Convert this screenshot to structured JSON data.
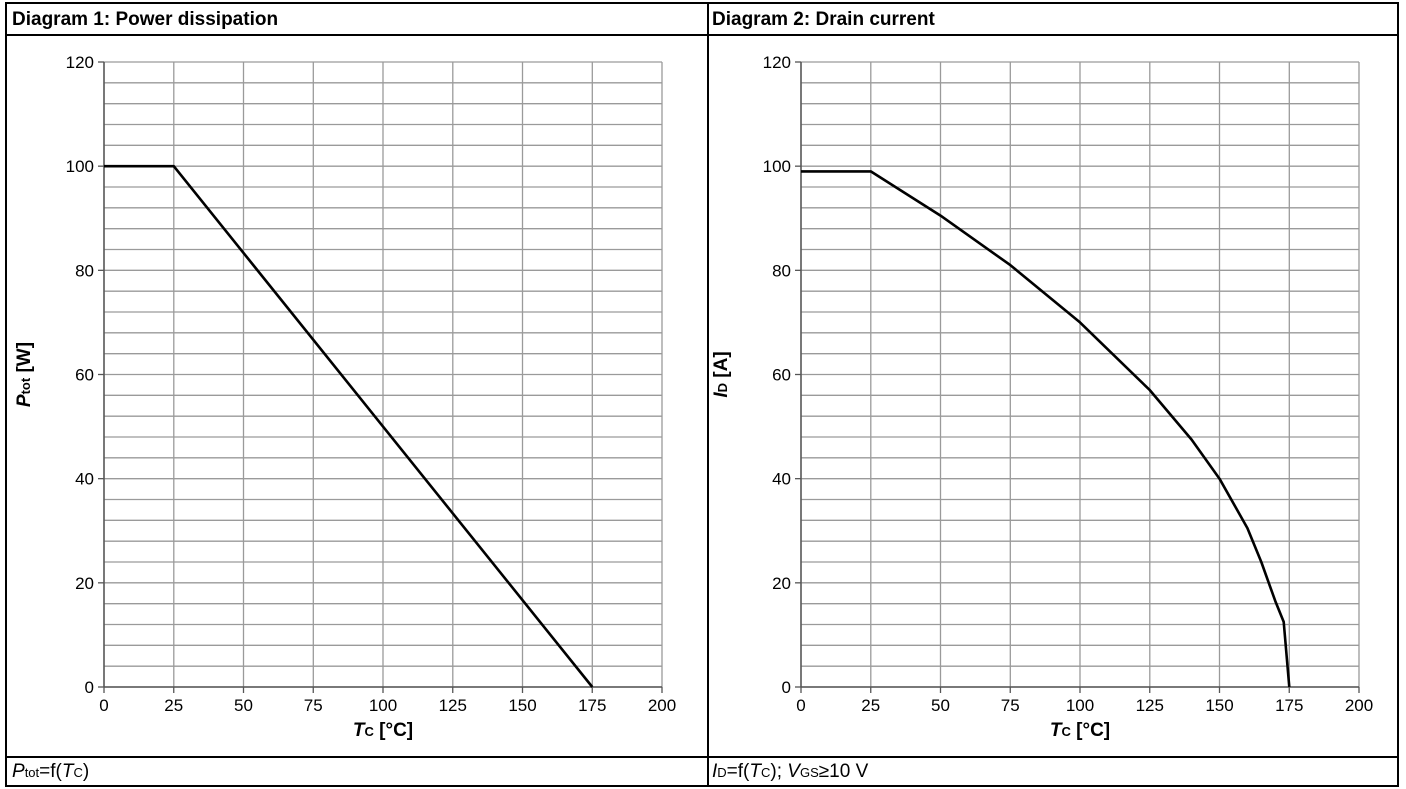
{
  "left_panel": {
    "title": "Diagram 1: Power dissipation",
    "caption": {
      "sym": "P",
      "sym_sub": "tot",
      "mid": "=f(",
      "arg": "T",
      "arg_sub": "C",
      "tail": ")"
    }
  },
  "right_panel": {
    "title": "Diagram 2: Drain current",
    "caption": {
      "sym": "I",
      "sym_sub": "D",
      "mid": "=f(",
      "arg": "T",
      "arg_sub": "C",
      "sep": "); ",
      "cond": "V",
      "cond_sub": "GS",
      "cond_tail": "≥10 V"
    }
  },
  "chart_data": [
    {
      "type": "line",
      "xlabel": {
        "main": "T",
        "sub": "C",
        "unit": " [°C]"
      },
      "ylabel": {
        "main": "P",
        "sub": "tot",
        "unit": " [W]"
      },
      "xlim": [
        0,
        200
      ],
      "ylim": [
        0,
        120
      ],
      "x_ticks": [
        0,
        25,
        50,
        75,
        100,
        125,
        150,
        175,
        200
      ],
      "y_ticks": [
        0,
        20,
        40,
        60,
        80,
        100,
        120
      ],
      "grid": true,
      "minor_y_grid_step": 4,
      "series": [
        {
          "color": "#000000",
          "x": [
            0,
            25,
            175
          ],
          "y": [
            100,
            100,
            0
          ]
        }
      ]
    },
    {
      "type": "line",
      "xlabel": {
        "main": "T",
        "sub": "C",
        "unit": " [°C]"
      },
      "ylabel": {
        "main": "I",
        "sub": "D",
        "unit": " [A]"
      },
      "xlim": [
        0,
        200
      ],
      "ylim": [
        0,
        120
      ],
      "x_ticks": [
        0,
        25,
        50,
        75,
        100,
        125,
        150,
        175,
        200
      ],
      "y_ticks": [
        0,
        20,
        40,
        60,
        80,
        100,
        120
      ],
      "grid": true,
      "minor_y_grid_step": 4,
      "series": [
        {
          "color": "#000000",
          "x": [
            0,
            25,
            50,
            75,
            100,
            125,
            140,
            150,
            160,
            165,
            170,
            173,
            175
          ],
          "y": [
            99,
            99,
            90.5,
            81,
            70,
            57,
            47.5,
            40,
            30.5,
            24,
            16.5,
            12.5,
            0
          ]
        }
      ]
    }
  ]
}
